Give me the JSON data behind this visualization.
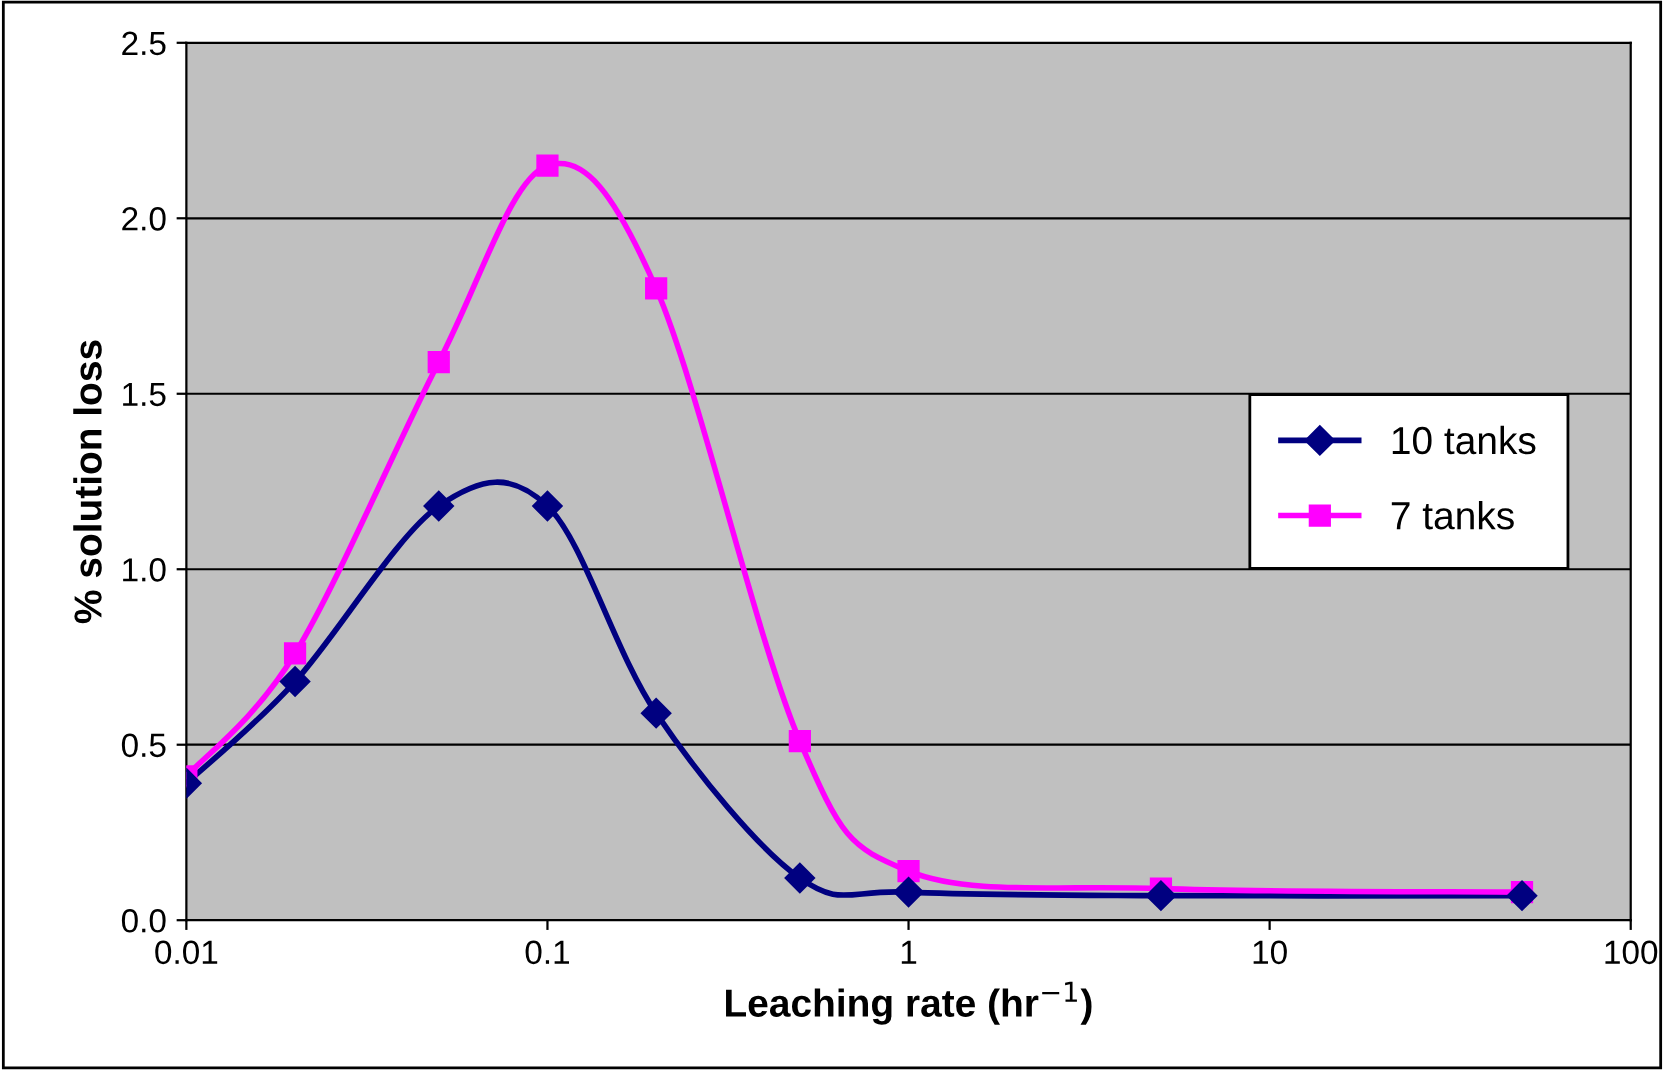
{
  "chart_data": {
    "type": "line",
    "xlabel": "Leaching rate (hr$^{−1}$)",
    "ylabel": "% solution loss",
    "x": [
      0.01,
      0.02,
      0.05,
      0.1,
      0.2,
      0.5,
      1,
      5,
      50
    ],
    "series": [
      {
        "name": "10 tanks",
        "color": "#000080",
        "marker": "diamond",
        "values": [
          0.39,
          0.68,
          1.18,
          1.18,
          0.59,
          0.12,
          0.08,
          0.07,
          0.07
        ]
      },
      {
        "name": "7 tanks",
        "color": "#ff00ff",
        "marker": "square",
        "values": [
          0.41,
          0.76,
          1.59,
          2.15,
          1.8,
          0.51,
          0.14,
          0.09,
          0.08
        ]
      }
    ],
    "log": "x",
    "xlim": [
      0.01,
      100
    ],
    "xticks": [
      0.01,
      0.1,
      1,
      10,
      100
    ],
    "ylim": [
      0,
      2.5
    ],
    "yticks": [
      {
        "value": 0,
        "label": "0.0"
      },
      {
        "value": 0.5,
        "label": "0.5"
      },
      {
        "value": 1,
        "label": "1.0"
      },
      {
        "value": 1.5,
        "label": "1.5"
      },
      {
        "value": 2,
        "label": "2.0"
      },
      {
        "value": 2.5,
        "label": "2.5"
      }
    ],
    "grid": "y",
    "legend": "right",
    "line_style": "solid"
  }
}
